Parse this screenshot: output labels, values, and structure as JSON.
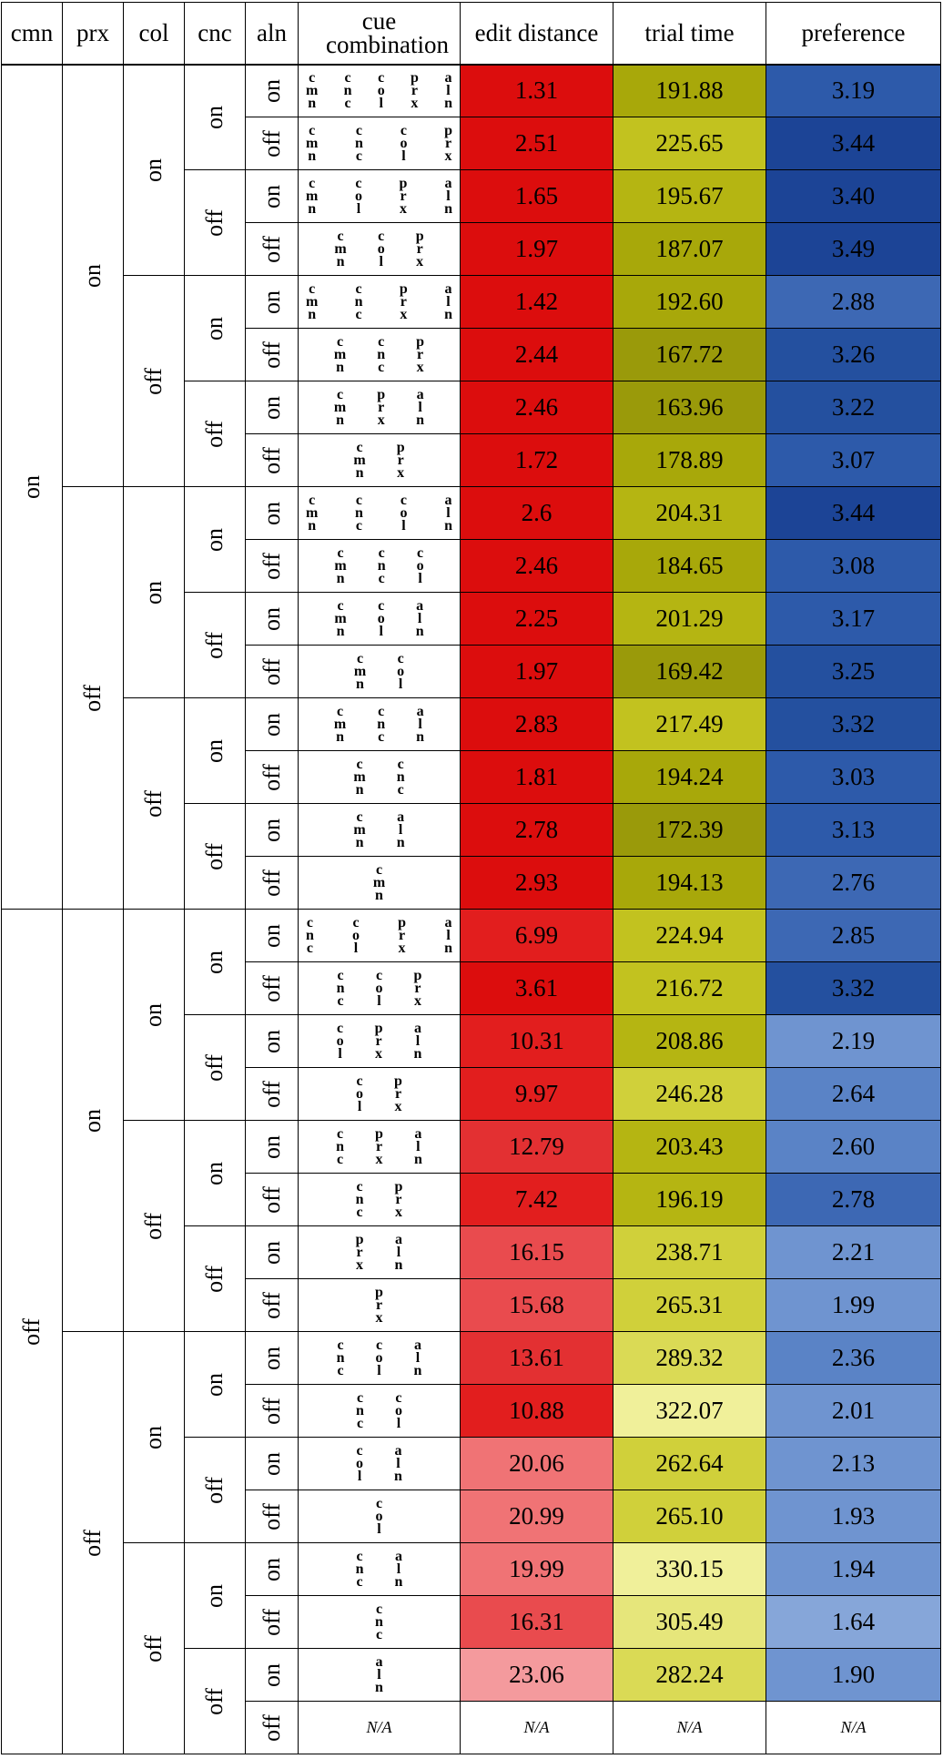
{
  "headers": {
    "cmn": "cmn",
    "prx": "prx",
    "col": "col",
    "cnc": "cnc",
    "aln": "aln",
    "cue": "cue combination",
    "edit": "edit distance",
    "trial": "trial time",
    "pref": "preference"
  },
  "labels": {
    "on": "on",
    "off": "off",
    "na": "N/A"
  },
  "colors": {
    "edit": [
      "#dc0d0d",
      "#e21e1e",
      "#e33032",
      "#e94b4e",
      "#f07375",
      "#f49a9d"
    ],
    "trial": [
      "#9a9a0a",
      "#a8a80a",
      "#b5b512",
      "#c2c21f",
      "#d0d03a",
      "#dada55",
      "#e6e67b",
      "#f0f09a"
    ],
    "pref": [
      "#1c4496",
      "#24509f",
      "#2d5aaa",
      "#3d68b4",
      "#5a83c6",
      "#6f94d0",
      "#86a6d9"
    ]
  },
  "rows": [
    {
      "cmn": "on",
      "prx": "on",
      "col": "on",
      "cnc": "on",
      "aln": "on",
      "cue": [
        [
          "c",
          "m",
          "n"
        ],
        [
          "c",
          "n",
          "c"
        ],
        [
          "c",
          "o",
          "l"
        ],
        [
          "p",
          "r",
          "x"
        ],
        [
          "a",
          "l",
          "n"
        ]
      ],
      "edit": "1.31",
      "trial": "191.88",
      "pref": "3.19"
    },
    {
      "cmn": "on",
      "prx": "on",
      "col": "on",
      "cnc": "on",
      "aln": "off",
      "cue": [
        [
          "c",
          "m",
          "n"
        ],
        [
          "c",
          "n",
          "c"
        ],
        [
          "c",
          "o",
          "l"
        ],
        [
          "p",
          "r",
          "x"
        ]
      ],
      "edit": "2.51",
      "trial": "225.65",
      "pref": "3.44"
    },
    {
      "cmn": "on",
      "prx": "on",
      "col": "on",
      "cnc": "off",
      "aln": "on",
      "cue": [
        [
          "c",
          "m",
          "n"
        ],
        [
          "c",
          "o",
          "l"
        ],
        [
          "p",
          "r",
          "x"
        ],
        [
          "a",
          "l",
          "n"
        ]
      ],
      "edit": "1.65",
      "trial": "195.67",
      "pref": "3.40"
    },
    {
      "cmn": "on",
      "prx": "on",
      "col": "on",
      "cnc": "off",
      "aln": "off",
      "cue": [
        [
          "c",
          "m",
          "n"
        ],
        [
          "c",
          "o",
          "l"
        ],
        [
          "p",
          "r",
          "x"
        ]
      ],
      "edit": "1.97",
      "trial": "187.07",
      "pref": "3.49"
    },
    {
      "cmn": "on",
      "prx": "on",
      "col": "off",
      "cnc": "on",
      "aln": "on",
      "cue": [
        [
          "c",
          "m",
          "n"
        ],
        [
          "c",
          "n",
          "c"
        ],
        [
          "p",
          "r",
          "x"
        ],
        [
          "a",
          "l",
          "n"
        ]
      ],
      "edit": "1.42",
      "trial": "192.60",
      "pref": "2.88"
    },
    {
      "cmn": "on",
      "prx": "on",
      "col": "off",
      "cnc": "on",
      "aln": "off",
      "cue": [
        [
          "c",
          "m",
          "n"
        ],
        [
          "c",
          "n",
          "c"
        ],
        [
          "p",
          "r",
          "x"
        ]
      ],
      "edit": "2.44",
      "trial": "167.72",
      "pref": "3.26"
    },
    {
      "cmn": "on",
      "prx": "on",
      "col": "off",
      "cnc": "off",
      "aln": "on",
      "cue": [
        [
          "c",
          "m",
          "n"
        ],
        [
          "p",
          "r",
          "x"
        ],
        [
          "a",
          "l",
          "n"
        ]
      ],
      "edit": "2.46",
      "trial": "163.96",
      "pref": "3.22"
    },
    {
      "cmn": "on",
      "prx": "on",
      "col": "off",
      "cnc": "off",
      "aln": "off",
      "cue": [
        [
          "c",
          "m",
          "n"
        ],
        [
          "p",
          "r",
          "x"
        ]
      ],
      "edit": "1.72",
      "trial": "178.89",
      "pref": "3.07"
    },
    {
      "cmn": "on",
      "prx": "off",
      "col": "on",
      "cnc": "on",
      "aln": "on",
      "cue": [
        [
          "c",
          "m",
          "n"
        ],
        [
          "c",
          "n",
          "c"
        ],
        [
          "c",
          "o",
          "l"
        ],
        [
          "a",
          "l",
          "n"
        ]
      ],
      "edit": "2.6",
      "trial": "204.31",
      "pref": "3.44"
    },
    {
      "cmn": "on",
      "prx": "off",
      "col": "on",
      "cnc": "on",
      "aln": "off",
      "cue": [
        [
          "c",
          "m",
          "n"
        ],
        [
          "c",
          "n",
          "c"
        ],
        [
          "c",
          "o",
          "l"
        ]
      ],
      "edit": "2.46",
      "trial": "184.65",
      "pref": "3.08"
    },
    {
      "cmn": "on",
      "prx": "off",
      "col": "on",
      "cnc": "off",
      "aln": "on",
      "cue": [
        [
          "c",
          "m",
          "n"
        ],
        [
          "c",
          "o",
          "l"
        ],
        [
          "a",
          "l",
          "n"
        ]
      ],
      "edit": "2.25",
      "trial": "201.29",
      "pref": "3.17"
    },
    {
      "cmn": "on",
      "prx": "off",
      "col": "on",
      "cnc": "off",
      "aln": "off",
      "cue": [
        [
          "c",
          "m",
          "n"
        ],
        [
          "c",
          "o",
          "l"
        ]
      ],
      "edit": "1.97",
      "trial": "169.42",
      "pref": "3.25"
    },
    {
      "cmn": "on",
      "prx": "off",
      "col": "off",
      "cnc": "on",
      "aln": "on",
      "cue": [
        [
          "c",
          "m",
          "n"
        ],
        [
          "c",
          "n",
          "c"
        ],
        [
          "a",
          "l",
          "n"
        ]
      ],
      "edit": "2.83",
      "trial": "217.49",
      "pref": "3.32"
    },
    {
      "cmn": "on",
      "prx": "off",
      "col": "off",
      "cnc": "on",
      "aln": "off",
      "cue": [
        [
          "c",
          "m",
          "n"
        ],
        [
          "c",
          "n",
          "c"
        ]
      ],
      "edit": "1.81",
      "trial": "194.24",
      "pref": "3.03"
    },
    {
      "cmn": "on",
      "prx": "off",
      "col": "off",
      "cnc": "off",
      "aln": "on",
      "cue": [
        [
          "c",
          "m",
          "n"
        ],
        [
          "a",
          "l",
          "n"
        ]
      ],
      "edit": "2.78",
      "trial": "172.39",
      "pref": "3.13"
    },
    {
      "cmn": "on",
      "prx": "off",
      "col": "off",
      "cnc": "off",
      "aln": "off",
      "cue": [
        [
          "c",
          "m",
          "n"
        ]
      ],
      "edit": "2.93",
      "trial": "194.13",
      "pref": "2.76"
    },
    {
      "cmn": "off",
      "prx": "on",
      "col": "on",
      "cnc": "on",
      "aln": "on",
      "cue": [
        [
          "c",
          "n",
          "c"
        ],
        [
          "c",
          "o",
          "l"
        ],
        [
          "p",
          "r",
          "x"
        ],
        [
          "a",
          "l",
          "n"
        ]
      ],
      "edit": "6.99",
      "trial": "224.94",
      "pref": "2.85"
    },
    {
      "cmn": "off",
      "prx": "on",
      "col": "on",
      "cnc": "on",
      "aln": "off",
      "cue": [
        [
          "c",
          "n",
          "c"
        ],
        [
          "c",
          "o",
          "l"
        ],
        [
          "p",
          "r",
          "x"
        ]
      ],
      "edit": "3.61",
      "trial": "216.72",
      "pref": "3.32"
    },
    {
      "cmn": "off",
      "prx": "on",
      "col": "on",
      "cnc": "off",
      "aln": "on",
      "cue": [
        [
          "c",
          "o",
          "l"
        ],
        [
          "p",
          "r",
          "x"
        ],
        [
          "a",
          "l",
          "n"
        ]
      ],
      "edit": "10.31",
      "trial": "208.86",
      "pref": "2.19"
    },
    {
      "cmn": "off",
      "prx": "on",
      "col": "on",
      "cnc": "off",
      "aln": "off",
      "cue": [
        [
          "c",
          "o",
          "l"
        ],
        [
          "p",
          "r",
          "x"
        ]
      ],
      "edit": "9.97",
      "trial": "246.28",
      "pref": "2.64"
    },
    {
      "cmn": "off",
      "prx": "on",
      "col": "off",
      "cnc": "on",
      "aln": "on",
      "cue": [
        [
          "c",
          "n",
          "c"
        ],
        [
          "p",
          "r",
          "x"
        ],
        [
          "a",
          "l",
          "n"
        ]
      ],
      "edit": "12.79",
      "trial": "203.43",
      "pref": "2.60"
    },
    {
      "cmn": "off",
      "prx": "on",
      "col": "off",
      "cnc": "on",
      "aln": "off",
      "cue": [
        [
          "c",
          "n",
          "c"
        ],
        [
          "p",
          "r",
          "x"
        ]
      ],
      "edit": "7.42",
      "trial": "196.19",
      "pref": "2.78"
    },
    {
      "cmn": "off",
      "prx": "on",
      "col": "off",
      "cnc": "off",
      "aln": "on",
      "cue": [
        [
          "p",
          "r",
          "x"
        ],
        [
          "a",
          "l",
          "n"
        ]
      ],
      "edit": "16.15",
      "trial": "238.71",
      "pref": "2.21"
    },
    {
      "cmn": "off",
      "prx": "on",
      "col": "off",
      "cnc": "off",
      "aln": "off",
      "cue": [
        [
          "p",
          "r",
          "x"
        ]
      ],
      "edit": "15.68",
      "trial": "265.31",
      "pref": "1.99"
    },
    {
      "cmn": "off",
      "prx": "off",
      "col": "on",
      "cnc": "on",
      "aln": "on",
      "cue": [
        [
          "c",
          "n",
          "c"
        ],
        [
          "c",
          "o",
          "l"
        ],
        [
          "a",
          "l",
          "n"
        ]
      ],
      "edit": "13.61",
      "trial": "289.32",
      "pref": "2.36"
    },
    {
      "cmn": "off",
      "prx": "off",
      "col": "on",
      "cnc": "on",
      "aln": "off",
      "cue": [
        [
          "c",
          "n",
          "c"
        ],
        [
          "c",
          "o",
          "l"
        ]
      ],
      "edit": "10.88",
      "trial": "322.07",
      "pref": "2.01"
    },
    {
      "cmn": "off",
      "prx": "off",
      "col": "on",
      "cnc": "off",
      "aln": "on",
      "cue": [
        [
          "c",
          "o",
          "l"
        ],
        [
          "a",
          "l",
          "n"
        ]
      ],
      "edit": "20.06",
      "trial": "262.64",
      "pref": "2.13"
    },
    {
      "cmn": "off",
      "prx": "off",
      "col": "on",
      "cnc": "off",
      "aln": "off",
      "cue": [
        [
          "c",
          "o",
          "l"
        ]
      ],
      "edit": "20.99",
      "trial": "265.10",
      "pref": "1.93"
    },
    {
      "cmn": "off",
      "prx": "off",
      "col": "off",
      "cnc": "on",
      "aln": "on",
      "cue": [
        [
          "c",
          "n",
          "c"
        ],
        [
          "a",
          "l",
          "n"
        ]
      ],
      "edit": "19.99",
      "trial": "330.15",
      "pref": "1.94"
    },
    {
      "cmn": "off",
      "prx": "off",
      "col": "off",
      "cnc": "on",
      "aln": "off",
      "cue": [
        [
          "c",
          "n",
          "c"
        ]
      ],
      "edit": "16.31",
      "trial": "305.49",
      "pref": "1.64"
    },
    {
      "cmn": "off",
      "prx": "off",
      "col": "off",
      "cnc": "off",
      "aln": "on",
      "cue": [
        [
          "a",
          "l",
          "n"
        ]
      ],
      "edit": "23.06",
      "trial": "282.24",
      "pref": "1.90"
    },
    {
      "cmn": "off",
      "prx": "off",
      "col": "off",
      "cnc": "off",
      "aln": "off",
      "cue": "N/A",
      "edit": "N/A",
      "trial": "N/A",
      "pref": "N/A"
    }
  ]
}
